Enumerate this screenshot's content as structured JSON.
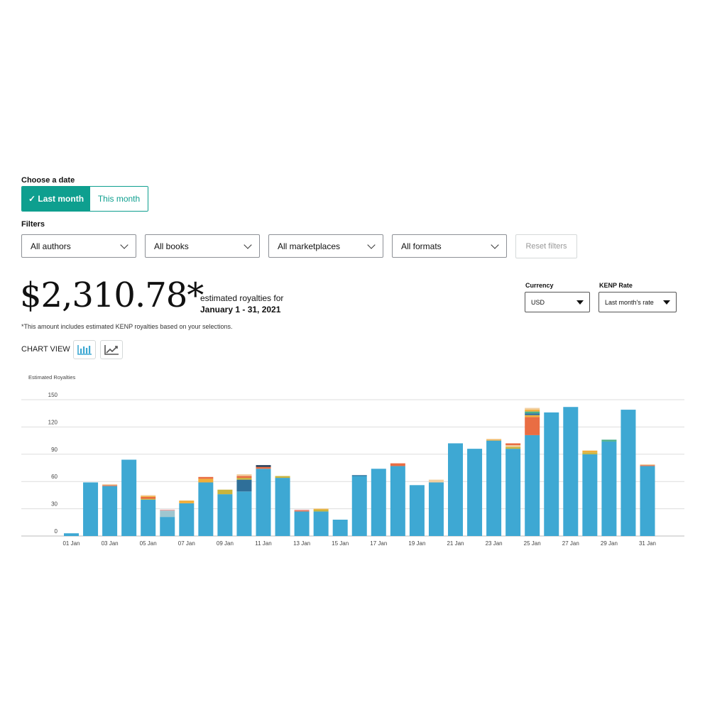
{
  "date": {
    "heading": "Choose a date",
    "options": [
      "✓ Last month",
      "This month"
    ]
  },
  "filters": {
    "heading": "Filters",
    "dropdowns": [
      "All authors",
      "All books",
      "All marketplaces",
      "All formats"
    ],
    "reset": "Reset filters"
  },
  "summary": {
    "amount": "$2,310.78*",
    "caption": "estimated royalties for",
    "period": "January 1 - 31, 2021",
    "note": "*This amount includes estimated KENP royalties based on your selections."
  },
  "currency": {
    "label": "Currency",
    "value": "USD"
  },
  "kenp": {
    "label": "KENP Rate",
    "value": "Last month's rate"
  },
  "chart_view": {
    "label": "CHART VIEW",
    "icons": [
      "bar-chart-icon",
      "line-chart-icon"
    ]
  },
  "colors": {
    "accent": "#0e9f8f",
    "bar": "#3ea8d3",
    "segments": [
      "#3ea8d3",
      "#e96d43",
      "#c9b43e",
      "#f0ae3a",
      "#2f6f99",
      "#243a55",
      "#9fc6d0",
      "#f2cfa0",
      "#e8a0a0",
      "#4caf8a"
    ]
  },
  "chart_data": {
    "type": "bar",
    "ylabel": "Estimated Royalties",
    "ylim": [
      0,
      150
    ],
    "yticks": [
      0,
      30,
      60,
      90,
      120,
      150
    ],
    "xtick_labels": [
      "01 Jan",
      "03 Jan",
      "05 Jan",
      "07 Jan",
      "09 Jan",
      "11 Jan",
      "13 Jan",
      "15 Jan",
      "17 Jan",
      "19 Jan",
      "21 Jan",
      "23 Jan",
      "25 Jan",
      "27 Jan",
      "29 Jan",
      "31 Jan"
    ],
    "categories": [
      "01 Jan",
      "02 Jan",
      "03 Jan",
      "04 Jan",
      "05 Jan",
      "06 Jan",
      "07 Jan",
      "08 Jan",
      "09 Jan",
      "10 Jan",
      "11 Jan",
      "12 Jan",
      "13 Jan",
      "14 Jan",
      "15 Jan",
      "16 Jan",
      "17 Jan",
      "18 Jan",
      "19 Jan",
      "20 Jan",
      "21 Jan",
      "22 Jan",
      "23 Jan",
      "24 Jan",
      "25 Jan",
      "26 Jan",
      "27 Jan",
      "28 Jan",
      "29 Jan",
      "30 Jan",
      "31 Jan"
    ],
    "stacks": [
      [
        3
      ],
      [
        59
      ],
      [
        55,
        1,
        1
      ],
      [
        84
      ],
      [
        40,
        1,
        2,
        1,
        1
      ],
      [
        21,
        7,
        1
      ],
      [
        36,
        3
      ],
      [
        59,
        4,
        2
      ],
      [
        46,
        5
      ],
      [
        49,
        13,
        2,
        2,
        2
      ],
      [
        74,
        2,
        2
      ],
      [
        64,
        2
      ],
      [
        27,
        1,
        1
      ],
      [
        27,
        2,
        1
      ],
      [
        18
      ],
      [
        66,
        1
      ],
      [
        74
      ],
      [
        77,
        3
      ],
      [
        56
      ],
      [
        59,
        3
      ],
      [
        102
      ],
      [
        96
      ],
      [
        105,
        1,
        1
      ],
      [
        96,
        2,
        2,
        2
      ],
      [
        111,
        20,
        2,
        2,
        2,
        2,
        2
      ],
      [
        136
      ],
      [
        142
      ],
      [
        90,
        2,
        2
      ],
      [
        104,
        2
      ],
      [
        139
      ],
      [
        77,
        1,
        1
      ]
    ],
    "stack_colors": [
      [
        "#3ea8d3"
      ],
      [
        "#3ea8d3"
      ],
      [
        "#3ea8d3",
        "#e96d43",
        "#f2cfa0"
      ],
      [
        "#3ea8d3"
      ],
      [
        "#3ea8d3",
        "#c9b43e",
        "#e96d43",
        "#f0ae3a",
        "#f2cfa0"
      ],
      [
        "#3ea8d3",
        "#9fc6d0",
        "#e8a0a0"
      ],
      [
        "#3ea8d3",
        "#f0ae3a"
      ],
      [
        "#3ea8d3",
        "#f0ae3a",
        "#e96d43"
      ],
      [
        "#3ea8d3",
        "#c9b43e"
      ],
      [
        "#3ea8d3",
        "#2f6f99",
        "#c9b43e",
        "#e96d43",
        "#f2cfa0"
      ],
      [
        "#3ea8d3",
        "#e96d43",
        "#243a55"
      ],
      [
        "#3ea8d3",
        "#c9b43e"
      ],
      [
        "#3ea8d3",
        "#e96d43",
        "#e8a0a0"
      ],
      [
        "#3ea8d3",
        "#c9b43e",
        "#f0ae3a"
      ],
      [
        "#3ea8d3"
      ],
      [
        "#3ea8d3",
        "#2f6f99"
      ],
      [
        "#3ea8d3"
      ],
      [
        "#3ea8d3",
        "#e96d43"
      ],
      [
        "#3ea8d3"
      ],
      [
        "#3ea8d3",
        "#f2cfa0"
      ],
      [
        "#3ea8d3"
      ],
      [
        "#3ea8d3"
      ],
      [
        "#3ea8d3",
        "#f0ae3a",
        "#f2cfa0"
      ],
      [
        "#3ea8d3",
        "#c9b43e",
        "#f2cfa0",
        "#e96d43"
      ],
      [
        "#3ea8d3",
        "#e96d43",
        "#f0ae3a",
        "#2f6f99",
        "#4caf8a",
        "#f0ae3a",
        "#f2cfa0"
      ],
      [
        "#3ea8d3"
      ],
      [
        "#3ea8d3"
      ],
      [
        "#3ea8d3",
        "#c9b43e",
        "#f0ae3a"
      ],
      [
        "#3ea8d3",
        "#4caf8a"
      ],
      [
        "#3ea8d3"
      ],
      [
        "#3ea8d3",
        "#e96d43",
        "#f2cfa0"
      ]
    ],
    "grid": true
  }
}
